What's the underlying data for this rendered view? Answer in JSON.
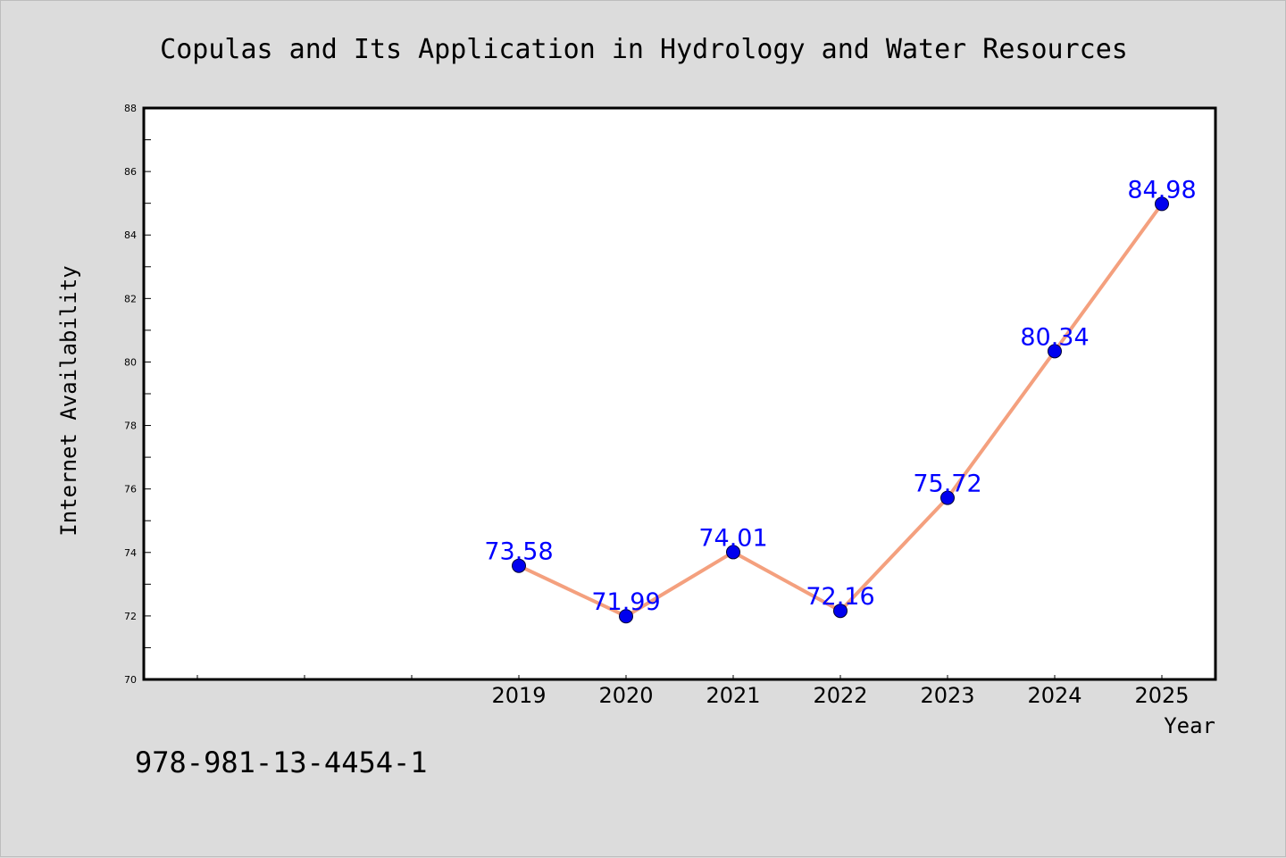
{
  "chart_data": {
    "type": "line",
    "title": "Copulas and Its Application in Hydrology and Water Resources",
    "xlabel": "Year",
    "ylabel": "Internet Availability",
    "categories": [
      "",
      "",
      "",
      "2019",
      "2020",
      "2021",
      "2022",
      "2023",
      "2024",
      "2025"
    ],
    "series": [
      {
        "x": [
          "2019",
          "2020",
          "2021",
          "2022",
          "2023",
          "2024",
          "2025"
        ],
        "values": [
          73.58,
          71.99,
          74.01,
          72.16,
          75.72,
          80.34,
          84.98
        ],
        "labels": [
          "73.58",
          "71.99",
          "74.01",
          "72.16",
          "75.72",
          "80.34",
          "84.98"
        ]
      }
    ],
    "ylim": [
      70,
      88
    ],
    "yticks": [
      70,
      72,
      74,
      76,
      78,
      80,
      82,
      84,
      86,
      88
    ],
    "grid": false,
    "line_color": "#f4a07e",
    "marker_color": "#0000ee",
    "label_color": "#0000ff"
  },
  "footer": {
    "isbn": "978-981-13-4454-1"
  }
}
